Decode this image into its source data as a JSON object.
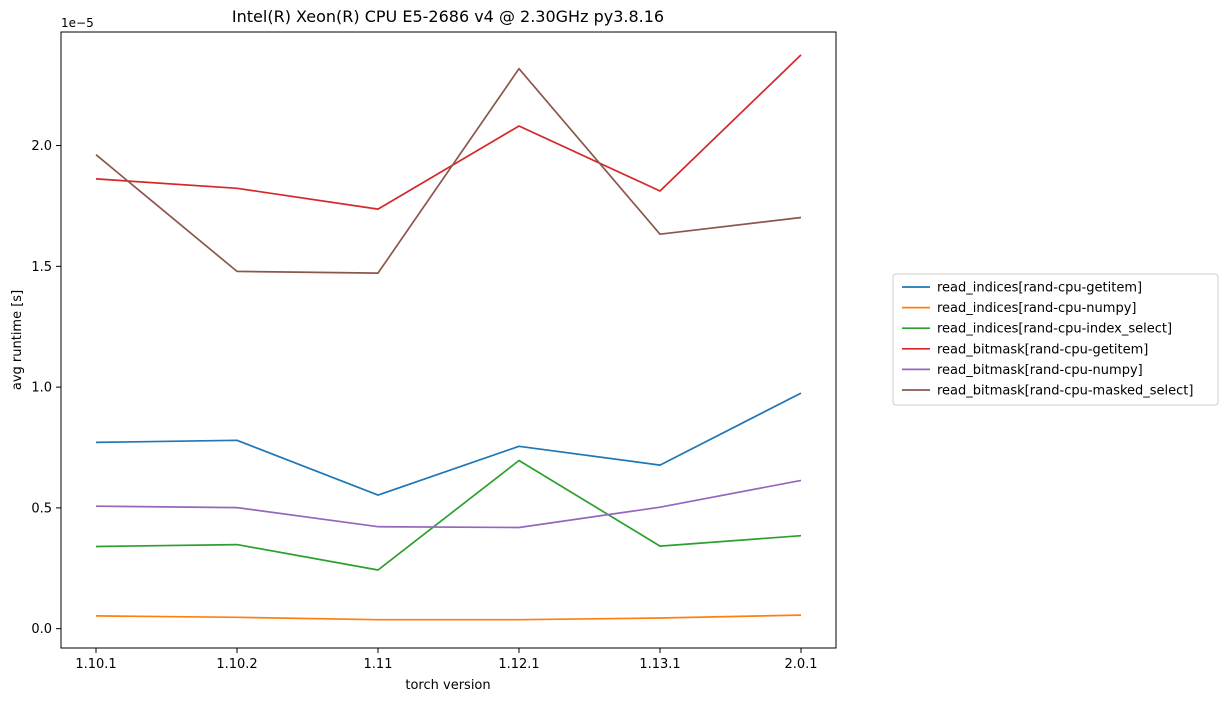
{
  "chart_data": {
    "type": "line",
    "title": "Intel(R) Xeon(R) CPU E5-2686 v4 @ 2.30GHz py3.8.16",
    "xlabel": "torch version",
    "ylabel": "avg runtime [s]",
    "y_scale_label": "1e−5",
    "categories": [
      "1.10.1",
      "1.10.2",
      "1.11",
      "1.12.1",
      "1.13.1",
      "2.0.1"
    ],
    "ylim": [
      -0.08,
      2.47
    ],
    "y_ticks": [
      0.0,
      0.5,
      1.0,
      1.5,
      2.0
    ],
    "y_tick_labels": [
      "0.0",
      "0.5",
      "1.0",
      "1.5",
      "2.0"
    ],
    "grid": false,
    "legend_position": "right",
    "series": [
      {
        "name": "read_indices[rand-cpu-getitem]",
        "color": "#1f77b4",
        "values": [
          0.771,
          0.78,
          0.553,
          0.755,
          0.677,
          0.975
        ]
      },
      {
        "name": "read_indices[rand-cpu-numpy]",
        "color": "#ff7f0e",
        "values": [
          0.053,
          0.047,
          0.037,
          0.037,
          0.044,
          0.056
        ]
      },
      {
        "name": "read_indices[rand-cpu-index_select]",
        "color": "#2ca02c",
        "values": [
          0.34,
          0.348,
          0.243,
          0.696,
          0.342,
          0.385
        ]
      },
      {
        "name": "read_bitmask[rand-cpu-getitem]",
        "color": "#d62728",
        "values": [
          1.862,
          1.823,
          1.737,
          2.081,
          1.812,
          2.375
        ]
      },
      {
        "name": "read_bitmask[rand-cpu-numpy]",
        "color": "#9467bd",
        "values": [
          0.507,
          0.501,
          0.422,
          0.419,
          0.503,
          0.614
        ]
      },
      {
        "name": "read_bitmask[rand-cpu-masked_select]",
        "color": "#8c564b",
        "values": [
          1.962,
          1.479,
          1.472,
          2.318,
          1.633,
          1.702
        ]
      }
    ]
  }
}
